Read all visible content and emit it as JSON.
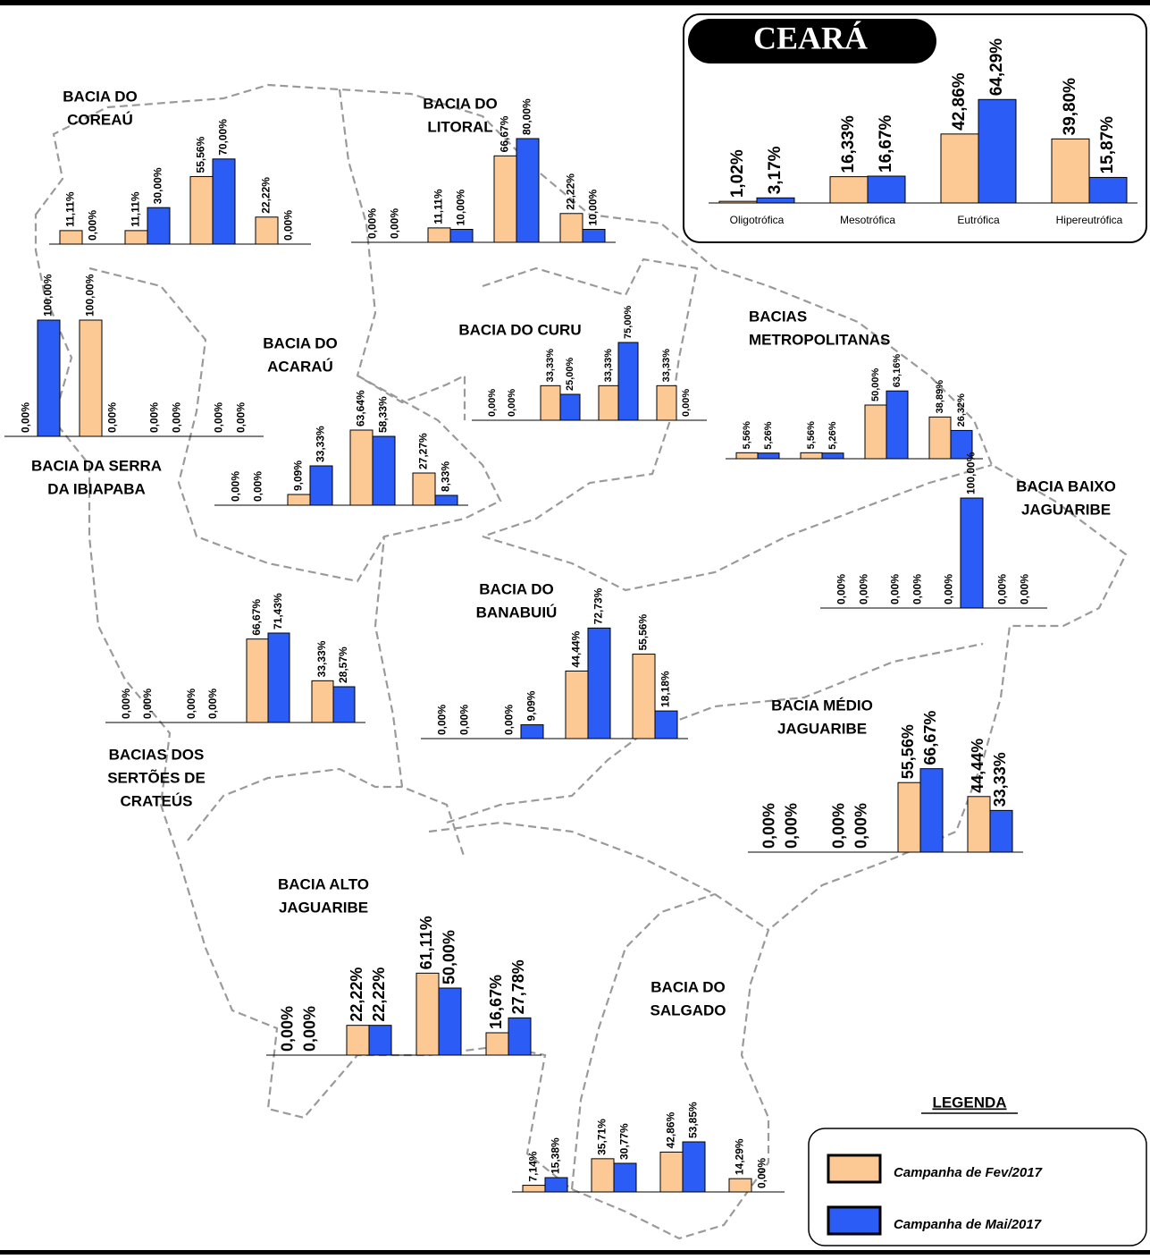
{
  "chart_data": [
    {
      "type": "bar",
      "title": [
        "CEARÁ"
      ],
      "categories": [
        "Oligotrófica",
        "Mesotrófica",
        "Eutrófica",
        "Hipereutrófica"
      ],
      "series": [
        {
          "name": "Campanha de Fev/2017",
          "color": "#fcc995",
          "values": [
            1.02,
            16.33,
            42.86,
            39.8
          ],
          "value_labels": [
            "1,02%",
            "16,33%",
            "42,86%",
            "39,80%"
          ]
        },
        {
          "name": "Campanha de Mai/2017",
          "color": "#2b5cf5",
          "values": [
            3.17,
            16.67,
            64.29,
            15.87
          ],
          "value_labels": [
            "3,17%",
            "16,67%",
            "64,29%",
            "15,87%"
          ]
        }
      ]
    },
    {
      "type": "bar",
      "title": [
        "BACIA DO",
        "COREAÚ"
      ],
      "series": [
        {
          "values": [
            11.11,
            11.11,
            55.56,
            22.22
          ],
          "value_labels": [
            "11,11%",
            "11,11%",
            "55,56%",
            "22,22%"
          ]
        },
        {
          "values": [
            0,
            30,
            70,
            0
          ],
          "value_labels": [
            "0,00%",
            "30,00%",
            "70,00%",
            "0,00%"
          ]
        }
      ]
    },
    {
      "type": "bar",
      "title": [
        "BACIA DO",
        "LITORAL"
      ],
      "series": [
        {
          "values": [
            0,
            11.11,
            66.67,
            22.22
          ],
          "value_labels": [
            "0,00%",
            "11,11%",
            "66,67%",
            "22,22%"
          ]
        },
        {
          "values": [
            0,
            10,
            80,
            10
          ],
          "value_labels": [
            "0,00%",
            "10,00%",
            "80,00%",
            "10,00%"
          ]
        }
      ]
    },
    {
      "type": "bar",
      "title": [
        "BACIA DA SERRA",
        "DA IBIAPABA"
      ],
      "series": [
        {
          "values": [
            0,
            100,
            0,
            0
          ],
          "value_labels": [
            "0,00%",
            "100,00%",
            "0,00%",
            "0,00%"
          ]
        },
        {
          "values": [
            100,
            0,
            0,
            0
          ],
          "value_labels": [
            "100,00%",
            "0,00%",
            "0,00%",
            "0,00%"
          ]
        }
      ]
    },
    {
      "type": "bar",
      "title": [
        "BACIA DO",
        "ACARAÚ"
      ],
      "series": [
        {
          "values": [
            0,
            9.09,
            63.64,
            27.27
          ],
          "value_labels": [
            "0,00%",
            "9,09%",
            "63,64%",
            "27,27%"
          ]
        },
        {
          "values": [
            0,
            33.33,
            58.33,
            8.33
          ],
          "value_labels": [
            "0,00%",
            "33,33%",
            "58,33%",
            "8,33%"
          ]
        }
      ]
    },
    {
      "type": "bar",
      "title": [
        "BACIA DO CURU"
      ],
      "series": [
        {
          "values": [
            0,
            33.33,
            33.33,
            33.33
          ],
          "value_labels": [
            "0,00%",
            "33,33%",
            "33,33%",
            "33,33%"
          ]
        },
        {
          "values": [
            0,
            25,
            75,
            0
          ],
          "value_labels": [
            "0,00%",
            "25,00%",
            "75,00%",
            "0,00%"
          ]
        }
      ]
    },
    {
      "type": "bar",
      "title": [
        "BACIAS",
        "METROPOLITANAS"
      ],
      "series": [
        {
          "values": [
            5.56,
            5.56,
            50,
            38.89
          ],
          "value_labels": [
            "5,56%",
            "5,56%",
            "50,00%",
            "38,89%"
          ]
        },
        {
          "values": [
            5.26,
            5.26,
            63.16,
            26.32
          ],
          "value_labels": [
            "5,26%",
            "5,26%",
            "63,16%",
            "26,32%"
          ]
        }
      ]
    },
    {
      "type": "bar",
      "title": [
        "BACIA BAIXO",
        "JAGUARIBE"
      ],
      "series": [
        {
          "values": [
            0,
            0,
            0,
            0
          ],
          "value_labels": [
            "0,00%",
            "0,00%",
            "0,00%",
            "0,00%"
          ]
        },
        {
          "values": [
            0,
            0,
            100,
            0
          ],
          "value_labels": [
            "0,00%",
            "0,00%",
            "100,00%",
            "0,00%"
          ]
        }
      ]
    },
    {
      "type": "bar",
      "title": [
        "BACIAS DOS",
        "SERTÕES DE",
        "CRATEÚS"
      ],
      "series": [
        {
          "values": [
            0,
            0,
            66.67,
            33.33
          ],
          "value_labels": [
            "0,00%",
            "0,00%",
            "66,67%",
            "33,33%"
          ]
        },
        {
          "values": [
            0,
            0,
            71.43,
            28.57
          ],
          "value_labels": [
            "0,00%",
            "0,00%",
            "71,43%",
            "28,57%"
          ]
        }
      ]
    },
    {
      "type": "bar",
      "title": [
        "BACIA DO",
        "BANABUIÚ"
      ],
      "series": [
        {
          "values": [
            0,
            0,
            44.44,
            55.56
          ],
          "value_labels": [
            "0,00%",
            "0,00%",
            "44,44%",
            "55,56%"
          ]
        },
        {
          "values": [
            0,
            9.09,
            72.73,
            18.18
          ],
          "value_labels": [
            "0,00%",
            "9,09%",
            "72,73%",
            "18,18%"
          ]
        }
      ]
    },
    {
      "type": "bar",
      "title": [
        "BACIA MÉDIO",
        "JAGUARIBE"
      ],
      "series": [
        {
          "values": [
            0,
            0,
            55.56,
            44.44
          ],
          "value_labels": [
            "0,00%",
            "0,00%",
            "55,56%",
            "44,44%"
          ]
        },
        {
          "values": [
            0,
            0,
            66.67,
            33.33
          ],
          "value_labels": [
            "0,00%",
            "0,00%",
            "66,67%",
            "33,33%"
          ]
        }
      ]
    },
    {
      "type": "bar",
      "title": [
        "BACIA ALTO",
        "JAGUARIBE"
      ],
      "series": [
        {
          "values": [
            0,
            22.22,
            61.11,
            16.67
          ],
          "value_labels": [
            "0,00%",
            "22,22%",
            "61,11%",
            "16,67%"
          ]
        },
        {
          "values": [
            0,
            22.22,
            50,
            27.78
          ],
          "value_labels": [
            "0,00%",
            "22,22%",
            "50,00%",
            "27,78%"
          ]
        }
      ]
    },
    {
      "type": "bar",
      "title": [
        "BACIA DO",
        "SALGADO"
      ],
      "series": [
        {
          "values": [
            7.14,
            35.71,
            42.86,
            14.29
          ],
          "value_labels": [
            "7,14%",
            "35,71%",
            "42,86%",
            "14,29%"
          ]
        },
        {
          "values": [
            15.38,
            30.77,
            53.85,
            0
          ],
          "value_labels": [
            "15,38%",
            "30,77%",
            "53,85%",
            "0,00%"
          ]
        }
      ]
    }
  ],
  "legend_title": "LEGENDA"
}
